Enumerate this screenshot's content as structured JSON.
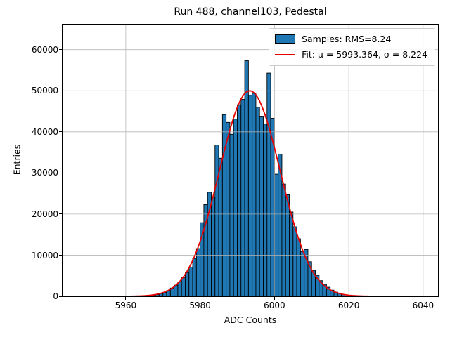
{
  "title": "Run 488, channel103, Pedestal",
  "axes": {
    "xlabel": "ADC Counts",
    "ylabel": "Entries"
  },
  "legend": {
    "samples_label": "Samples: RMS=8.24",
    "fit_label": "Fit: μ = 5993.364, σ = 8.224"
  },
  "chart_data": {
    "type": "bar",
    "subtype": "histogram",
    "title": "Run 488, channel103, Pedestal",
    "xlabel": "ADC Counts",
    "ylabel": "Entries",
    "bin_start": 5966,
    "bin_width": 1,
    "values": [
      130,
      250,
      400,
      650,
      950,
      1400,
      2000,
      2700,
      3500,
      4500,
      5700,
      7100,
      9200,
      11600,
      17900,
      22300,
      25300,
      24100,
      36800,
      33600,
      44200,
      42300,
      39400,
      43100,
      46600,
      47900,
      57300,
      48900,
      49400,
      46000,
      43800,
      41900,
      54300,
      43300,
      29700,
      34600,
      27300,
      24700,
      20500,
      16900,
      14000,
      10900,
      11400,
      8400,
      6300,
      5100,
      3800,
      2900,
      2200,
      1500,
      1000,
      700,
      450
    ],
    "rms": 8.24,
    "fit": {
      "type": "gaussian",
      "mu": 5993.364,
      "sigma": 8.224,
      "amplitude": 50000,
      "x_start": 5948,
      "x_end": 6030
    },
    "xticks": [
      5960,
      5980,
      6000,
      6020,
      6040
    ],
    "yticks": [
      0,
      10000,
      20000,
      30000,
      40000,
      50000,
      60000
    ],
    "xlim": [
      5943,
      6044
    ],
    "ylim": [
      0,
      66100
    ],
    "grid": true,
    "legend_position": "upper right",
    "colors": {
      "bar_fill": "#1f77b4",
      "bar_edge": "#000000",
      "fit_line": "#e60000",
      "grid": "#b0b0b0"
    }
  }
}
